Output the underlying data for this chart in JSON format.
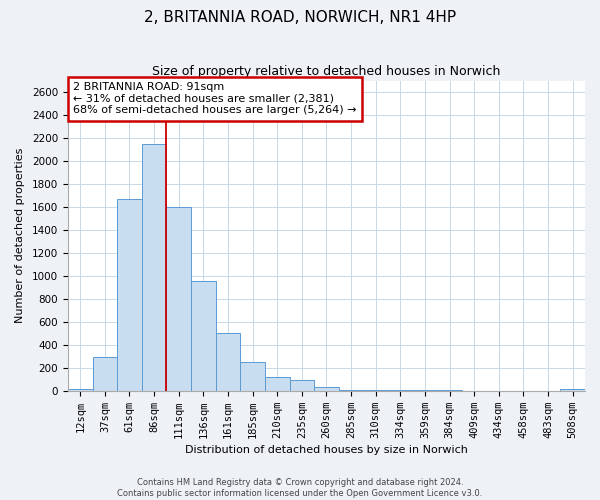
{
  "title": "2, BRITANNIA ROAD, NORWICH, NR1 4HP",
  "subtitle": "Size of property relative to detached houses in Norwich",
  "xlabel": "Distribution of detached houses by size in Norwich",
  "ylabel": "Number of detached properties",
  "bar_labels": [
    "12sqm",
    "37sqm",
    "61sqm",
    "86sqm",
    "111sqm",
    "136sqm",
    "161sqm",
    "185sqm",
    "210sqm",
    "235sqm",
    "260sqm",
    "285sqm",
    "310sqm",
    "334sqm",
    "359sqm",
    "384sqm",
    "409sqm",
    "434sqm",
    "458sqm",
    "483sqm",
    "508sqm"
  ],
  "bar_values": [
    20,
    295,
    1670,
    2150,
    1600,
    960,
    505,
    250,
    120,
    95,
    35,
    5,
    5,
    10,
    5,
    5,
    0,
    0,
    0,
    0,
    20
  ],
  "bar_color": "#c9ddf0",
  "bar_edge_color": "#5b9bd5",
  "annotation_line1": "2 BRITANNIA ROAD: 91sqm",
  "annotation_line2": "← 31% of detached houses are smaller (2,381)",
  "annotation_line3": "68% of semi-detached houses are larger (5,264) →",
  "annotation_box_edge_color": "#cc0000",
  "vline_color": "#cc0000",
  "vline_x_index": 3.5,
  "ylim": [
    0,
    2700
  ],
  "yticks": [
    0,
    200,
    400,
    600,
    800,
    1000,
    1200,
    1400,
    1600,
    1800,
    2000,
    2200,
    2400,
    2600
  ],
  "footer_line1": "Contains HM Land Registry data © Crown copyright and database right 2024.",
  "footer_line2": "Contains public sector information licensed under the Open Government Licence v3.0.",
  "bg_color": "#eef2f7",
  "plot_bg_color": "#ffffff",
  "grid_color": "#c8d8e8",
  "title_fontsize": 11,
  "subtitle_fontsize": 9,
  "axis_label_fontsize": 8,
  "tick_fontsize": 7.5
}
